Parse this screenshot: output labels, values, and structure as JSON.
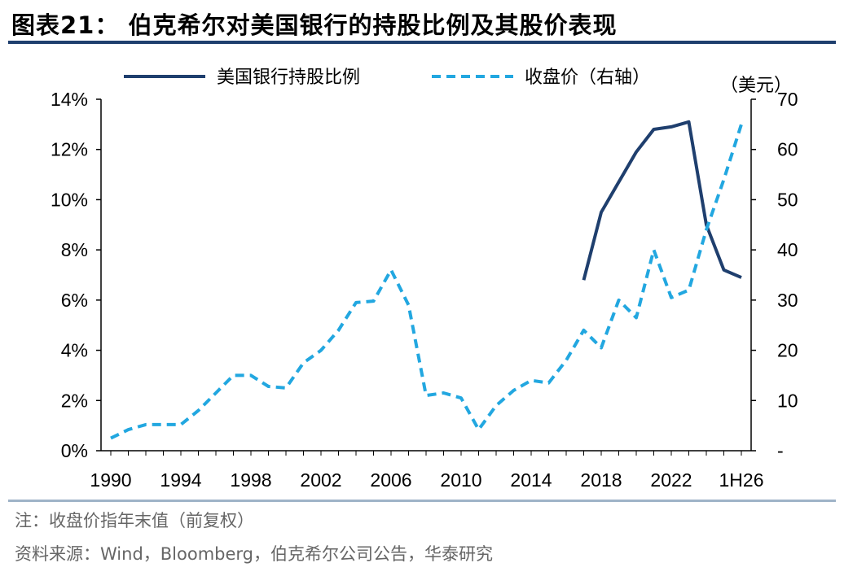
{
  "header": {
    "title": "图表21： 伯克希尔对美国银行的持股比例及其股价表现"
  },
  "footer": {
    "note": "注：收盘价指年末值（前复权）",
    "source": "资料来源：Wind，Bloomberg，伯克希尔公司公告，华泰研究"
  },
  "chart_data": {
    "type": "line",
    "x_tick_labels": [
      "1990",
      "1994",
      "1998",
      "2002",
      "2006",
      "2010",
      "2014",
      "2018",
      "2022",
      "1H26"
    ],
    "y_left_ticks": [
      "0%",
      "2%",
      "4%",
      "6%",
      "8%",
      "10%",
      "12%",
      "14%"
    ],
    "y_left_range": [
      0,
      14
    ],
    "y_right_ticks": [
      "-",
      "10",
      "20",
      "30",
      "40",
      "50",
      "60",
      "70"
    ],
    "y_right_range": [
      0,
      70
    ],
    "y_right_unit": "（美元）",
    "legend_position": "top",
    "grid": false,
    "colors": {
      "ownership": "#1f3f6e",
      "price": "#22a7e0"
    },
    "series": [
      {
        "name": "美国银行持股比例",
        "axis": "left",
        "style": "solid",
        "x": [
          2017,
          2018,
          2019,
          2020,
          2021,
          2022,
          2023,
          2024,
          2025,
          2026
        ],
        "values": [
          6.8,
          9.5,
          10.7,
          11.9,
          12.8,
          12.9,
          13.1,
          9.0,
          7.2,
          6.9
        ]
      },
      {
        "name": "收盘价（右轴）",
        "axis": "right",
        "style": "dashed",
        "x": [
          1990,
          1991,
          1992,
          1993,
          1994,
          1995,
          1996,
          1997,
          1998,
          1999,
          2000,
          2001,
          2002,
          2003,
          2004,
          2005,
          2006,
          2007,
          2008,
          2009,
          2010,
          2011,
          2012,
          2013,
          2014,
          2015,
          2016,
          2017,
          2018,
          2019,
          2020,
          2021,
          2022,
          2023,
          2024,
          2025,
          2026
        ],
        "values": [
          2.5,
          4.2,
          5.2,
          5.2,
          5.2,
          8.0,
          11.5,
          15.0,
          15.0,
          12.8,
          12.5,
          17.5,
          20.0,
          24.0,
          29.5,
          29.8,
          36.0,
          29.0,
          11.0,
          11.5,
          10.5,
          4.2,
          9.0,
          12.0,
          14.0,
          13.5,
          18.0,
          24.0,
          20.5,
          30.0,
          26.5,
          40.0,
          30.5,
          32.0,
          44.0,
          54.0,
          65.0
        ]
      }
    ]
  }
}
